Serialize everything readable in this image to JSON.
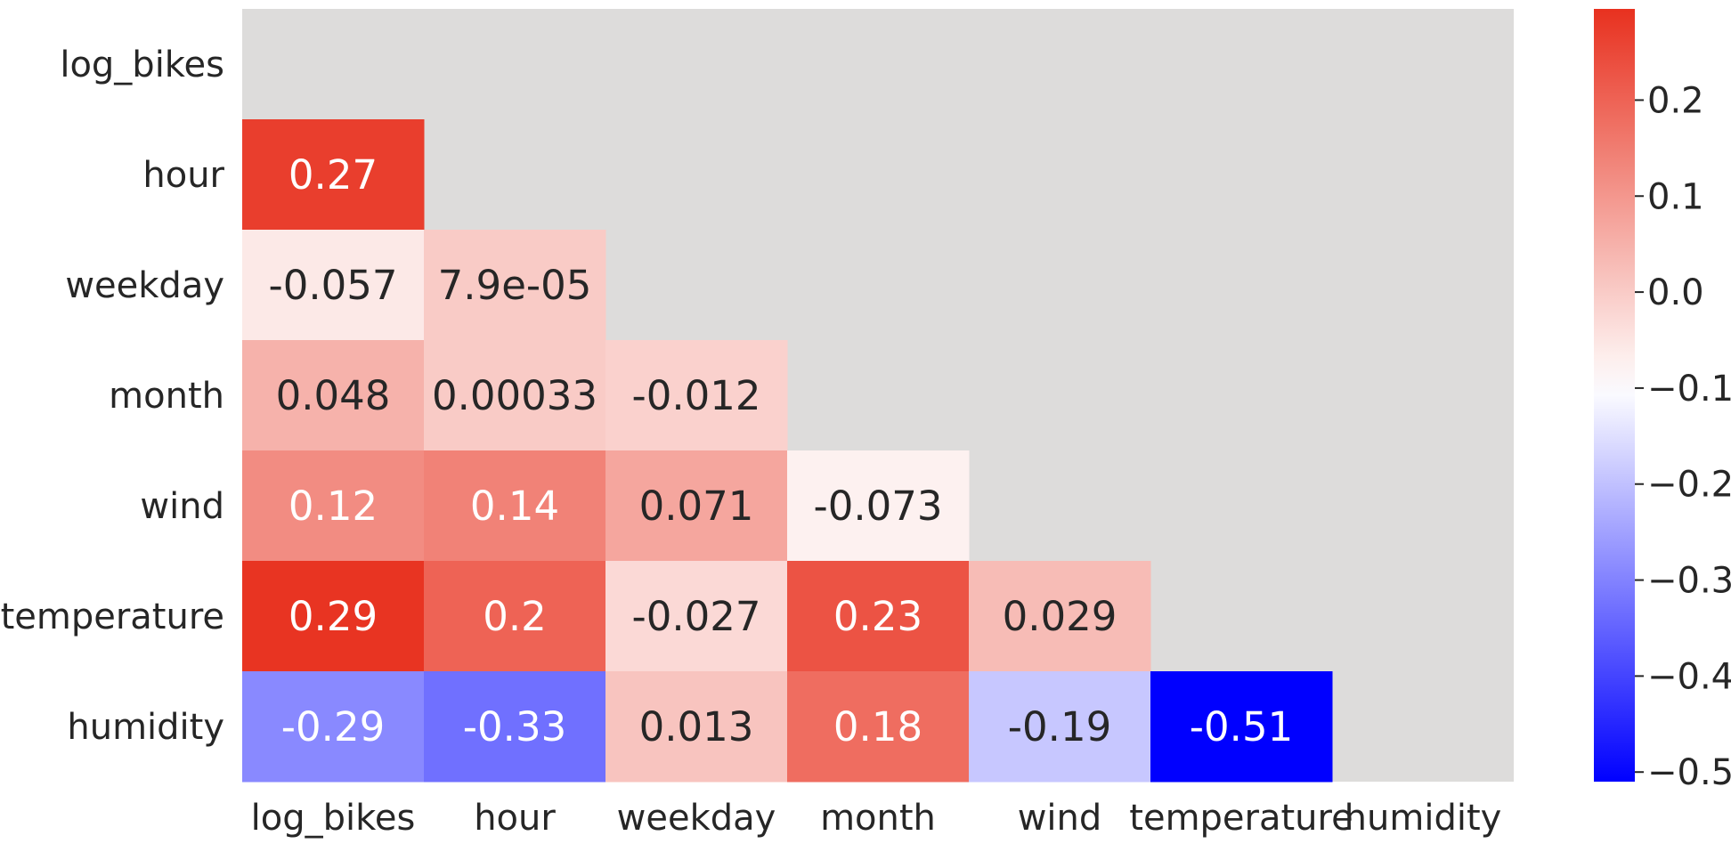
{
  "chart_data": {
    "type": "heatmap",
    "title": "",
    "xlabel": "",
    "ylabel": "",
    "variables": [
      "log_bikes",
      "hour",
      "weekday",
      "month",
      "wind",
      "temperature",
      "humidity"
    ],
    "x_tick_labels": [
      "log_bikes",
      "hour",
      "weekday",
      "month",
      "wind",
      "temperature",
      "humidity"
    ],
    "y_tick_labels": [
      "log_bikes",
      "hour",
      "weekday",
      "month",
      "wind",
      "temperature",
      "humidity"
    ],
    "mask": "upper triangle including diagonal",
    "cells": [
      {
        "row": "hour",
        "col": "log_bikes",
        "value": 0.27,
        "label": "0.27"
      },
      {
        "row": "weekday",
        "col": "log_bikes",
        "value": -0.057,
        "label": "-0.057"
      },
      {
        "row": "weekday",
        "col": "hour",
        "value": 7.9e-05,
        "label": "7.9e-05"
      },
      {
        "row": "month",
        "col": "log_bikes",
        "value": 0.048,
        "label": "0.048"
      },
      {
        "row": "month",
        "col": "hour",
        "value": 0.00033,
        "label": "0.00033"
      },
      {
        "row": "month",
        "col": "weekday",
        "value": -0.012,
        "label": "-0.012"
      },
      {
        "row": "wind",
        "col": "log_bikes",
        "value": 0.12,
        "label": "0.12"
      },
      {
        "row": "wind",
        "col": "hour",
        "value": 0.14,
        "label": "0.14"
      },
      {
        "row": "wind",
        "col": "weekday",
        "value": 0.071,
        "label": "0.071"
      },
      {
        "row": "wind",
        "col": "month",
        "value": -0.073,
        "label": "-0.073"
      },
      {
        "row": "temperature",
        "col": "log_bikes",
        "value": 0.29,
        "label": "0.29"
      },
      {
        "row": "temperature",
        "col": "hour",
        "value": 0.2,
        "label": "0.2"
      },
      {
        "row": "temperature",
        "col": "weekday",
        "value": -0.027,
        "label": "-0.027"
      },
      {
        "row": "temperature",
        "col": "month",
        "value": 0.23,
        "label": "0.23"
      },
      {
        "row": "temperature",
        "col": "wind",
        "value": 0.029,
        "label": "0.029"
      },
      {
        "row": "humidity",
        "col": "log_bikes",
        "value": -0.29,
        "label": "-0.29"
      },
      {
        "row": "humidity",
        "col": "hour",
        "value": -0.33,
        "label": "-0.33"
      },
      {
        "row": "humidity",
        "col": "weekday",
        "value": 0.013,
        "label": "0.013"
      },
      {
        "row": "humidity",
        "col": "month",
        "value": 0.18,
        "label": "0.18"
      },
      {
        "row": "humidity",
        "col": "wind",
        "value": -0.19,
        "label": "-0.19"
      },
      {
        "row": "humidity",
        "col": "temperature",
        "value": -0.51,
        "label": "-0.51"
      }
    ],
    "colorbar": {
      "vmin": -0.51,
      "vmax": 0.295,
      "ticks": [
        -0.5,
        -0.4,
        -0.3,
        -0.2,
        -0.1,
        0.0,
        0.1,
        0.2
      ],
      "tick_labels": [
        "−0.5",
        "−0.4",
        "−0.3",
        "−0.2",
        "−0.1",
        "0.0",
        "0.1",
        "0.2"
      ],
      "colormap": "diverging blue-white-red centered near -0.1"
    },
    "colors": {
      "min": "#0000ff",
      "center": "#ffffff",
      "max": "#e8311f",
      "masked_background": "#dddcdb",
      "text_dark": "#262626",
      "text_light": "#ffffff"
    },
    "grid": false,
    "legend": "colorbar-right"
  }
}
